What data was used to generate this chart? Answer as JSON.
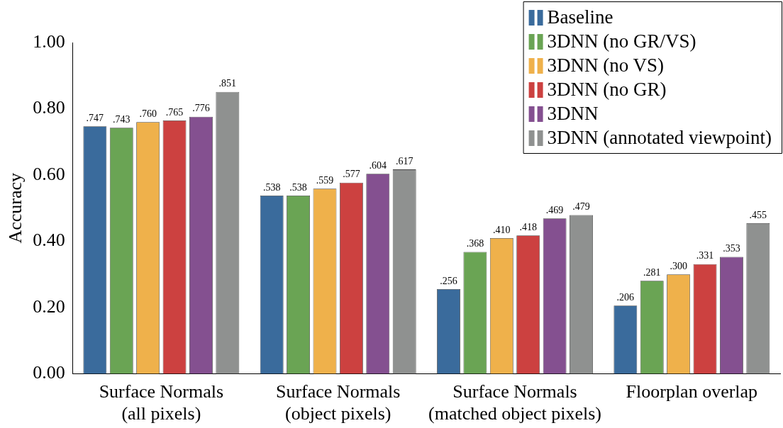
{
  "chart_data": {
    "type": "bar",
    "ylabel": "Accuracy",
    "categories": [
      "Surface Normals\n(all pixels)",
      "Surface Normals\n(object pixels)",
      "Surface Normals\n(matched object pixels)",
      "Floorplan overlap"
    ],
    "series": [
      {
        "name": "Baseline",
        "color": "#3a6b9c",
        "values": [
          0.747,
          0.538,
          0.256,
          0.206
        ],
        "value_labels": [
          ".747",
          ".538",
          ".256",
          ".206"
        ]
      },
      {
        "name": "3DNN (no GR/VS)",
        "color": "#6aa454",
        "values": [
          0.743,
          0.538,
          0.368,
          0.281
        ],
        "value_labels": [
          ".743",
          ".538",
          ".368",
          ".281"
        ]
      },
      {
        "name": "3DNN (no VS)",
        "color": "#efb14b",
        "values": [
          0.76,
          0.559,
          0.41,
          0.3
        ],
        "value_labels": [
          ".760",
          ".559",
          ".410",
          ".300"
        ]
      },
      {
        "name": "3DNN (no GR)",
        "color": "#cc4140",
        "values": [
          0.765,
          0.577,
          0.418,
          0.331
        ],
        "value_labels": [
          ".765",
          ".577",
          ".418",
          ".331"
        ]
      },
      {
        "name": "3DNN",
        "color": "#845090",
        "values": [
          0.776,
          0.604,
          0.469,
          0.353
        ],
        "value_labels": [
          ".776",
          ".604",
          ".469",
          ".353"
        ]
      },
      {
        "name": "3DNN (annotated viewpoint)",
        "color": "#8f9190",
        "values": [
          0.851,
          0.617,
          0.479,
          0.455
        ],
        "value_labels": [
          ".851",
          ".617",
          ".479",
          ".455"
        ]
      }
    ],
    "ylim": [
      0,
      1
    ],
    "yticks": [
      {
        "value": 0,
        "label": "0.00"
      },
      {
        "value": 0.2,
        "label": "0.20"
      },
      {
        "value": 0.4,
        "label": "0.40"
      },
      {
        "value": 0.6,
        "label": "0.60"
      },
      {
        "value": 0.8,
        "label": "0.80"
      },
      {
        "value": 1,
        "label": "1.00"
      }
    ],
    "grid": false,
    "legend": "top right"
  }
}
